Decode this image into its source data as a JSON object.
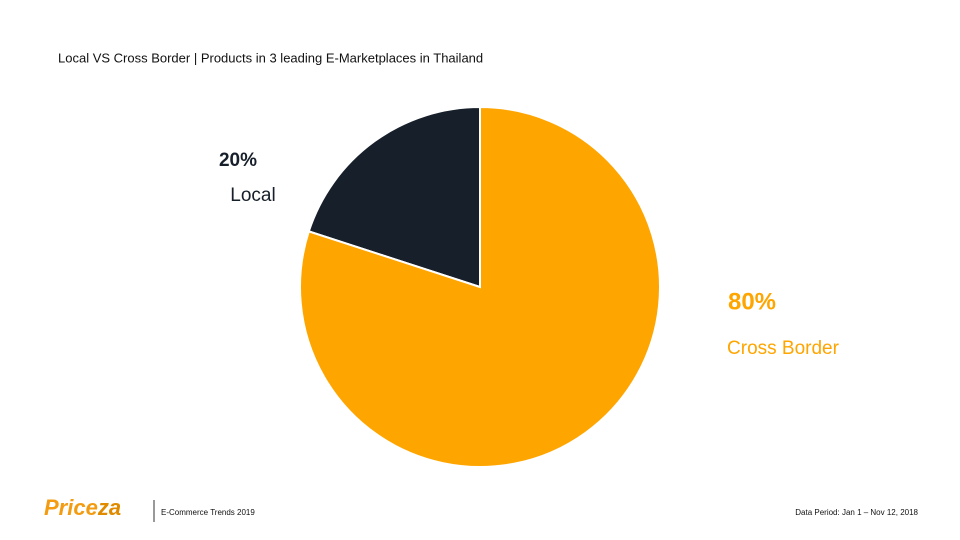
{
  "chart_data": {
    "type": "pie",
    "title": "Local VS Cross Border | Products in 3 leading E-Marketplaces in Thailand",
    "categories": [
      "Local",
      "Cross Border"
    ],
    "values": [
      20,
      80
    ],
    "value_labels": [
      "20%",
      "80%"
    ],
    "colors": [
      "#161f2a",
      "#ffa500"
    ]
  },
  "footer": {
    "logo": [
      "Price",
      "za"
    ],
    "caption": "E-Commerce Trends 2019",
    "data_period": "Data Period: Jan 1 – Nov 12, 2018"
  }
}
